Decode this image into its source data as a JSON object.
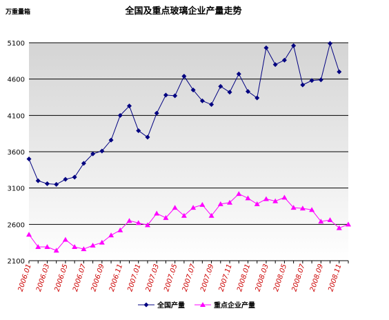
{
  "chart_data": {
    "type": "line",
    "title": "全国及重点玻璃企业产量走势",
    "y_unit": "万重量箱",
    "categories": [
      "2006.01",
      null,
      "2006.03",
      null,
      "2006.05",
      null,
      "2006.07",
      null,
      "2006.09",
      null,
      "2006.11",
      null,
      "2007.01",
      null,
      "2007.03",
      null,
      "2007.05",
      null,
      "2007.07",
      null,
      "2007.09",
      null,
      "2007.11",
      null,
      "2008.01",
      null,
      "2008.03",
      null,
      "2008.05",
      null,
      "2008.07",
      null,
      "2008.09",
      null,
      "2008.11",
      null
    ],
    "series": [
      {
        "name": "全国产量",
        "color": "#000080",
        "marker": "diamond",
        "values": [
          3500,
          3200,
          3160,
          3150,
          3220,
          3250,
          3440,
          3570,
          3610,
          3760,
          4100,
          4230,
          3890,
          3800,
          4130,
          4380,
          4370,
          4640,
          4450,
          4300,
          4250,
          4500,
          4420,
          4670,
          4430,
          4340,
          5030,
          4800,
          4860,
          5060,
          4520,
          4580,
          4590,
          5090,
          4700,
          null
        ]
      },
      {
        "name": "重点企业产量",
        "color": "#ff00ff",
        "marker": "triangle",
        "values": [
          2460,
          2290,
          2290,
          2240,
          2390,
          2290,
          2260,
          2310,
          2350,
          2450,
          2520,
          2650,
          2620,
          2590,
          2750,
          2690,
          2830,
          2720,
          2830,
          2870,
          2720,
          2880,
          2900,
          3020,
          2960,
          2880,
          2950,
          2920,
          2970,
          2830,
          2820,
          2800,
          2640,
          2660,
          2550,
          2600
        ]
      }
    ],
    "ylim": [
      2100,
      5100
    ],
    "yticks": [
      2100,
      2600,
      3100,
      3600,
      4100,
      4600,
      5100
    ],
    "grid": true,
    "legend": "bottom"
  }
}
